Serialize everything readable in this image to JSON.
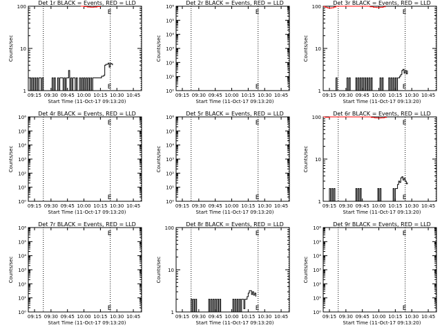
{
  "figure": {
    "x_tick_labels": [
      "09:15",
      "09:30",
      "09:45",
      "10:00",
      "10:15",
      "10:30",
      "10:45"
    ],
    "xlabel": "Start Time (11-Oct-17 09:13:20)",
    "ylabel": "Counts/sec",
    "colors": {
      "events": "#000000",
      "lld": "#ff0000"
    }
  },
  "chart_data": [
    {
      "type": "line",
      "title": "Det 1r BLACK = Events, RED = LLD",
      "yscale": "log",
      "xlim_minutes": [
        9.3333,
        112.5
      ],
      "ylim": [
        1,
        100
      ],
      "ytick_labels": [
        "1",
        "10",
        "100"
      ],
      "vlines_minutes": [
        23,
        84,
        112
      ],
      "marker_minutes": 84,
      "series": [
        {
          "color": "#000000",
          "points": [
            [
              10,
              1
            ],
            [
              11,
              2
            ],
            [
              12,
              1
            ],
            [
              13,
              2
            ],
            [
              14,
              1
            ],
            [
              15,
              2
            ],
            [
              16,
              1
            ],
            [
              17,
              2
            ],
            [
              18,
              1
            ],
            [
              19,
              2
            ],
            [
              21,
              1
            ],
            [
              22,
              2
            ],
            [
              23,
              1
            ],
            [
              30,
              1
            ],
            [
              31,
              2
            ],
            [
              32,
              1
            ],
            [
              33,
              2
            ],
            [
              34,
              1
            ],
            [
              36,
              2
            ],
            [
              37,
              1
            ],
            [
              38,
              2
            ],
            [
              40,
              2
            ],
            [
              41,
              1
            ],
            [
              42,
              2
            ],
            [
              43,
              1
            ],
            [
              44,
              2
            ],
            [
              45,
              2
            ],
            [
              46,
              3
            ],
            [
              47,
              1
            ],
            [
              48,
              2
            ],
            [
              49,
              1
            ],
            [
              50,
              2
            ],
            [
              52,
              1
            ],
            [
              53,
              2
            ],
            [
              54,
              1
            ],
            [
              56,
              2
            ],
            [
              57,
              1
            ],
            [
              58,
              2
            ],
            [
              59,
              1
            ],
            [
              60,
              2
            ],
            [
              61,
              1
            ],
            [
              62,
              2
            ],
            [
              63,
              1
            ],
            [
              64,
              2
            ],
            [
              65,
              1
            ],
            [
              66,
              2
            ],
            [
              67,
              1
            ],
            [
              68,
              2
            ],
            [
              69,
              2
            ],
            [
              70,
              2
            ],
            [
              71,
              2
            ],
            [
              72,
              2
            ],
            [
              73,
              2
            ],
            [
              74,
              2
            ],
            [
              75,
              2
            ],
            [
              76,
              2.2
            ],
            [
              77,
              2.2
            ],
            [
              78,
              2.3
            ],
            [
              79,
              4
            ],
            [
              80,
              4.2
            ],
            [
              81,
              4.2
            ],
            [
              82,
              4.5
            ],
            [
              83,
              3.6
            ],
            [
              84,
              4.4
            ],
            [
              85,
              4.3
            ],
            [
              86,
              4
            ]
          ]
        },
        {
          "color": "#ff0000",
          "points": [
            [
              57,
              100
            ],
            [
              60,
              98
            ],
            [
              63,
              96
            ],
            [
              66,
              95
            ],
            [
              69,
              96
            ],
            [
              72,
              98
            ],
            [
              75,
              100
            ]
          ]
        }
      ]
    },
    {
      "type": "line",
      "title": "Det 2r BLACK = Events, RED = LLD",
      "yscale": "log",
      "xlim_minutes": [
        9.3333,
        112.5
      ],
      "ylim": [
        1,
        1000000
      ],
      "ytick_labels": [
        "10⁰",
        "10¹",
        "10²",
        "10³",
        "10⁴",
        "10⁵",
        "10⁶"
      ],
      "vlines_minutes": [
        23,
        84,
        112
      ],
      "marker_minutes": 84,
      "series": []
    },
    {
      "type": "line",
      "title": "Det 3r BLACK = Events, RED = LLD",
      "yscale": "log",
      "xlim_minutes": [
        9.3333,
        112.5
      ],
      "ylim": [
        1,
        100
      ],
      "ytick_labels": [
        "1",
        "10",
        "100"
      ],
      "vlines_minutes": [
        23,
        84,
        112
      ],
      "marker_minutes": 84,
      "series": [
        {
          "color": "#000000",
          "points": [
            [
              20,
              1
            ],
            [
              21,
              2
            ],
            [
              22,
              1
            ],
            [
              30,
              1
            ],
            [
              31,
              2
            ],
            [
              32,
              1
            ],
            [
              33,
              2
            ],
            [
              34,
              1
            ],
            [
              38,
              1
            ],
            [
              39,
              2
            ],
            [
              40,
              1
            ],
            [
              41,
              2
            ],
            [
              42,
              1
            ],
            [
              43,
              2
            ],
            [
              44,
              1
            ],
            [
              45,
              2
            ],
            [
              46,
              1
            ],
            [
              47,
              2
            ],
            [
              48,
              1
            ],
            [
              49,
              2
            ],
            [
              50,
              1
            ],
            [
              51,
              2
            ],
            [
              52,
              1
            ],
            [
              53,
              2
            ],
            [
              54,
              1
            ],
            [
              60,
              1
            ],
            [
              61,
              2
            ],
            [
              62,
              1
            ],
            [
              63,
              2
            ],
            [
              64,
              1
            ],
            [
              68,
              1
            ],
            [
              69,
              2
            ],
            [
              70,
              1
            ],
            [
              71,
              2
            ],
            [
              72,
              1
            ],
            [
              73,
              2
            ],
            [
              74,
              1
            ],
            [
              75,
              2
            ],
            [
              76,
              1
            ],
            [
              77,
              2
            ],
            [
              78,
              2
            ],
            [
              79,
              2.2
            ],
            [
              80,
              2.4
            ],
            [
              81,
              3
            ],
            [
              82,
              3.2
            ],
            [
              83,
              2.6
            ],
            [
              84,
              3
            ],
            [
              85,
              2.5
            ],
            [
              86,
              3
            ]
          ]
        },
        {
          "color": "#ff0000",
          "points": [
            [
              9.5,
              99
            ],
            [
              11,
              95
            ],
            [
              13,
              91
            ],
            [
              15,
              90
            ],
            [
              17,
              92
            ],
            [
              19,
              96
            ],
            [
              21,
              100
            ],
            [
              50,
              100
            ],
            [
              52,
              97
            ],
            [
              55,
              94
            ],
            [
              58,
              93
            ],
            [
              61,
              94
            ],
            [
              64,
              97
            ],
            [
              66,
              100
            ]
          ]
        }
      ]
    },
    {
      "type": "line",
      "title": "Det 4r BLACK = Events, RED = LLD",
      "yscale": "log",
      "xlim_minutes": [
        9.3333,
        112.5
      ],
      "ylim": [
        1,
        1000000
      ],
      "ytick_labels": [
        "10⁰",
        "10¹",
        "10²",
        "10³",
        "10⁴",
        "10⁵",
        "10⁶"
      ],
      "vlines_minutes": [
        23,
        84,
        112
      ],
      "marker_minutes": 84,
      "series": []
    },
    {
      "type": "line",
      "title": "Det 5r BLACK = Events, RED = LLD",
      "yscale": "log",
      "xlim_minutes": [
        9.3333,
        112.5
      ],
      "ylim": [
        1,
        1000000
      ],
      "ytick_labels": [
        "10⁰",
        "10¹",
        "10²",
        "10³",
        "10⁴",
        "10⁵",
        "10⁶"
      ],
      "vlines_minutes": [
        23,
        84,
        112
      ],
      "marker_minutes": 84,
      "series": []
    },
    {
      "type": "line",
      "title": "Det 6r BLACK = Events, RED = LLD",
      "yscale": "log",
      "xlim_minutes": [
        9.3333,
        112.5
      ],
      "ylim": [
        1,
        100
      ],
      "ytick_labels": [
        "1",
        "10",
        "100"
      ],
      "vlines_minutes": [
        23,
        84,
        112
      ],
      "marker_minutes": 84,
      "series": [
        {
          "color": "#000000",
          "points": [
            [
              14,
              1
            ],
            [
              15,
              2
            ],
            [
              16,
              1
            ],
            [
              17,
              2
            ],
            [
              18,
              1
            ],
            [
              19,
              2
            ],
            [
              20,
              1
            ],
            [
              38,
              1
            ],
            [
              39,
              2
            ],
            [
              40,
              1
            ],
            [
              41,
              2
            ],
            [
              42,
              1
            ],
            [
              43,
              2
            ],
            [
              44,
              1
            ],
            [
              58,
              1
            ],
            [
              59,
              2
            ],
            [
              60,
              1
            ],
            [
              61,
              2
            ],
            [
              62,
              1
            ],
            [
              72,
              1
            ],
            [
              73,
              2
            ],
            [
              74,
              1
            ],
            [
              75,
              2
            ],
            [
              76,
              2
            ],
            [
              77,
              2.5
            ],
            [
              78,
              3
            ],
            [
              79,
              2.8
            ],
            [
              80,
              3.6
            ],
            [
              81,
              3.8
            ],
            [
              82,
              3.2
            ],
            [
              83,
              3.5
            ],
            [
              84,
              3
            ],
            [
              85,
              2.6
            ],
            [
              86,
              2.8
            ]
          ]
        },
        {
          "color": "#ff0000",
          "points": [
            [
              9.5,
              100
            ],
            [
              11,
              98
            ],
            [
              13,
              98
            ],
            [
              15,
              100
            ],
            [
              50,
              100
            ],
            [
              53,
              97
            ],
            [
              56,
              95
            ],
            [
              59,
              94
            ],
            [
              62,
              95
            ],
            [
              65,
              97
            ],
            [
              67,
              100
            ]
          ]
        }
      ]
    },
    {
      "type": "line",
      "title": "Det 7r BLACK = Events, RED = LLD",
      "yscale": "log",
      "xlim_minutes": [
        9.3333,
        112.5
      ],
      "ylim": [
        1,
        1000000
      ],
      "ytick_labels": [
        "10⁰",
        "10¹",
        "10²",
        "10³",
        "10⁴",
        "10⁵",
        "10⁶"
      ],
      "vlines_minutes": [
        23,
        84,
        112
      ],
      "marker_minutes": 84,
      "series": []
    },
    {
      "type": "line",
      "title": "Det 8r BLACK = Events, RED = LLD",
      "yscale": "log",
      "xlim_minutes": [
        9.3333,
        112.5
      ],
      "ylim": [
        1,
        100
      ],
      "ytick_labels": [
        "1",
        "10",
        "100"
      ],
      "vlines_minutes": [
        23,
        84,
        112
      ],
      "marker_minutes": 84,
      "series": [
        {
          "color": "#000000",
          "points": [
            [
              22,
              1
            ],
            [
              23,
              2
            ],
            [
              24,
              1
            ],
            [
              25,
              2
            ],
            [
              26,
              1
            ],
            [
              27,
              2
            ],
            [
              28,
              1
            ],
            [
              38,
              1
            ],
            [
              39,
              2
            ],
            [
              40,
              1
            ],
            [
              41,
              2
            ],
            [
              42,
              1
            ],
            [
              43,
              2
            ],
            [
              44,
              1
            ],
            [
              45,
              2
            ],
            [
              46,
              1
            ],
            [
              47,
              2
            ],
            [
              48,
              1
            ],
            [
              49,
              2
            ],
            [
              50,
              1
            ],
            [
              60,
              1
            ],
            [
              61,
              2
            ],
            [
              62,
              1
            ],
            [
              63,
              2
            ],
            [
              64,
              1
            ],
            [
              65,
              2
            ],
            [
              66,
              1
            ],
            [
              67,
              2
            ],
            [
              68,
              1
            ],
            [
              69,
              2
            ],
            [
              70,
              2
            ],
            [
              71,
              1.2
            ],
            [
              72,
              2
            ],
            [
              73,
              2
            ],
            [
              74,
              2.3
            ],
            [
              75,
              2.8
            ],
            [
              76,
              3.2
            ],
            [
              77,
              3.2
            ],
            [
              78,
              2.6
            ],
            [
              79,
              3
            ],
            [
              80,
              2.5
            ],
            [
              81,
              2.8
            ],
            [
              82,
              2.3
            ]
          ]
        }
      ]
    },
    {
      "type": "line",
      "title": "Det 9r BLACK = Events, RED = LLD",
      "yscale": "log",
      "xlim_minutes": [
        9.3333,
        112.5
      ],
      "ylim": [
        1,
        1000000
      ],
      "ytick_labels": [
        "10⁰",
        "10¹",
        "10²",
        "10³",
        "10⁴",
        "10⁵",
        "10⁶"
      ],
      "vlines_minutes": [
        23,
        84,
        112
      ],
      "marker_minutes": 84,
      "series": []
    }
  ]
}
